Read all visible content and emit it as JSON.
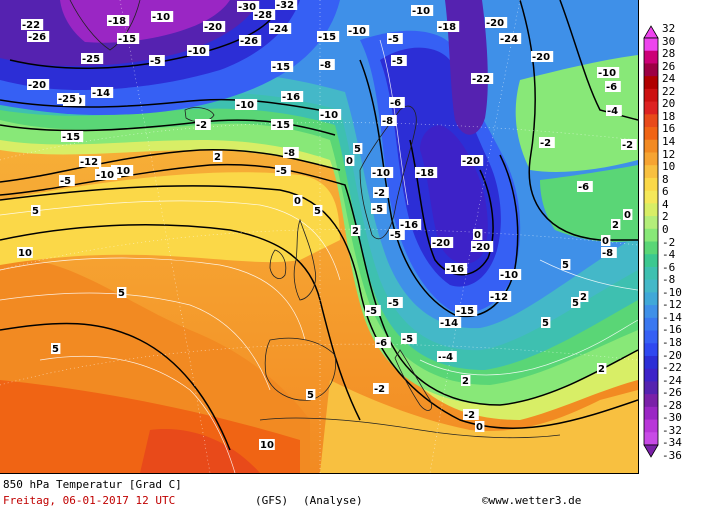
{
  "title": "850 hPa Temperatur [Grad C]",
  "date_line": "Freitag, 06-01-2017   12 UTC",
  "model": "(GFS)",
  "run_type": "(Analyse)",
  "credit": "www.wetter3.de",
  "copyright_symbol": "©",
  "legend": {
    "ticks": [
      "32",
      "30",
      "28",
      "26",
      "24",
      "22",
      "20",
      "18",
      "16",
      "14",
      "12",
      "10",
      "8",
      "6",
      "4",
      "2",
      "0",
      "-2",
      "-4",
      "-6",
      "-8",
      "-10",
      "-12",
      "-14",
      "-16",
      "-18",
      "-20",
      "-22",
      "-24",
      "-26",
      "-28",
      "-30",
      "-32",
      "-34",
      "-36"
    ],
    "colors": [
      "#ee44ee",
      "#cc0077",
      "#9d0044",
      "#b00000",
      "#cc1111",
      "#dd2222",
      "#e84a1a",
      "#f06414",
      "#f28a22",
      "#f6a432",
      "#f8c040",
      "#fbd848",
      "#f5e85a",
      "#d8ee66",
      "#b4ee7a",
      "#88e878",
      "#5ad676",
      "#3cc890",
      "#3ec0b0",
      "#44b8c8",
      "#40a8d8",
      "#3f90e8",
      "#3a78f0",
      "#3660f4",
      "#2f48f0",
      "#2c2ed6",
      "#3d22c8",
      "#5522b0",
      "#7a20a8",
      "#9a26c4",
      "#b836d8",
      "#c84ae6"
    ]
  },
  "map_labels": [
    {
      "t": "-22"
    },
    {
      "t": "-26"
    },
    {
      "t": "-18"
    },
    {
      "t": "-10"
    },
    {
      "t": "-15"
    },
    {
      "t": "-25"
    },
    {
      "t": "-20"
    },
    {
      "t": "-15"
    },
    {
      "t": "-10"
    },
    {
      "t": "-5"
    },
    {
      "t": "-10"
    },
    {
      "t": "-20"
    },
    {
      "t": "-28"
    },
    {
      "t": "-32"
    },
    {
      "t": "-26"
    },
    {
      "t": "-30"
    },
    {
      "t": "-24"
    },
    {
      "t": "-15"
    },
    {
      "t": "-10"
    },
    {
      "t": "-8"
    },
    {
      "t": "-5"
    },
    {
      "t": "-10"
    },
    {
      "t": "-18"
    },
    {
      "t": "-20"
    },
    {
      "t": "-24"
    },
    {
      "t": "-20"
    },
    {
      "t": "-5"
    },
    {
      "t": "-6"
    },
    {
      "t": "-8"
    },
    {
      "t": "-10"
    },
    {
      "t": "-2"
    },
    {
      "t": "-5"
    },
    {
      "t": "-22"
    },
    {
      "t": "-20"
    },
    {
      "t": "-15"
    },
    {
      "t": "-10"
    },
    {
      "t": "-20"
    },
    {
      "t": "-25"
    },
    {
      "t": "-16"
    },
    {
      "t": "-10"
    },
    {
      "t": "-15"
    },
    {
      "t": "-5"
    },
    {
      "t": "-10"
    },
    {
      "t": "-2"
    },
    {
      "t": "-8"
    },
    {
      "t": "2"
    },
    {
      "t": "-14"
    },
    {
      "t": "-12"
    },
    {
      "t": "-10"
    },
    {
      "t": "-5"
    },
    {
      "t": "0"
    },
    {
      "t": "2"
    },
    {
      "t": "5"
    },
    {
      "t": "10"
    },
    {
      "t": "5"
    },
    {
      "t": "0"
    },
    {
      "t": "5"
    },
    {
      "t": "-18"
    },
    {
      "t": "-16"
    },
    {
      "t": "-20"
    },
    {
      "t": "-20"
    },
    {
      "t": "-16"
    },
    {
      "t": "-15"
    },
    {
      "t": "-10"
    },
    {
      "t": "-12"
    },
    {
      "t": "-14"
    },
    {
      "t": "-5"
    },
    {
      "t": "-5"
    },
    {
      "t": "-5"
    },
    {
      "t": "-8"
    },
    {
      "t": "-2"
    },
    {
      "t": "0"
    },
    {
      "t": "-2"
    },
    {
      "t": "0"
    },
    {
      "t": "2"
    },
    {
      "t": "5"
    },
    {
      "t": "5"
    },
    {
      "t": "5"
    },
    {
      "t": "10"
    },
    {
      "t": "2"
    },
    {
      "t": "5"
    },
    {
      "t": "-2"
    },
    {
      "t": "-10"
    },
    {
      "t": "-6"
    },
    {
      "t": "-4"
    },
    {
      "t": "-2"
    },
    {
      "t": "0"
    },
    {
      "t": "-5"
    },
    {
      "t": "-6"
    },
    {
      "t": "5"
    },
    {
      "t": "0"
    },
    {
      "t": "2"
    },
    {
      "t": "-4"
    },
    {
      "t": "-6"
    },
    {
      "t": "-8"
    },
    {
      "t": "2"
    },
    {
      "t": "5"
    }
  ]
}
